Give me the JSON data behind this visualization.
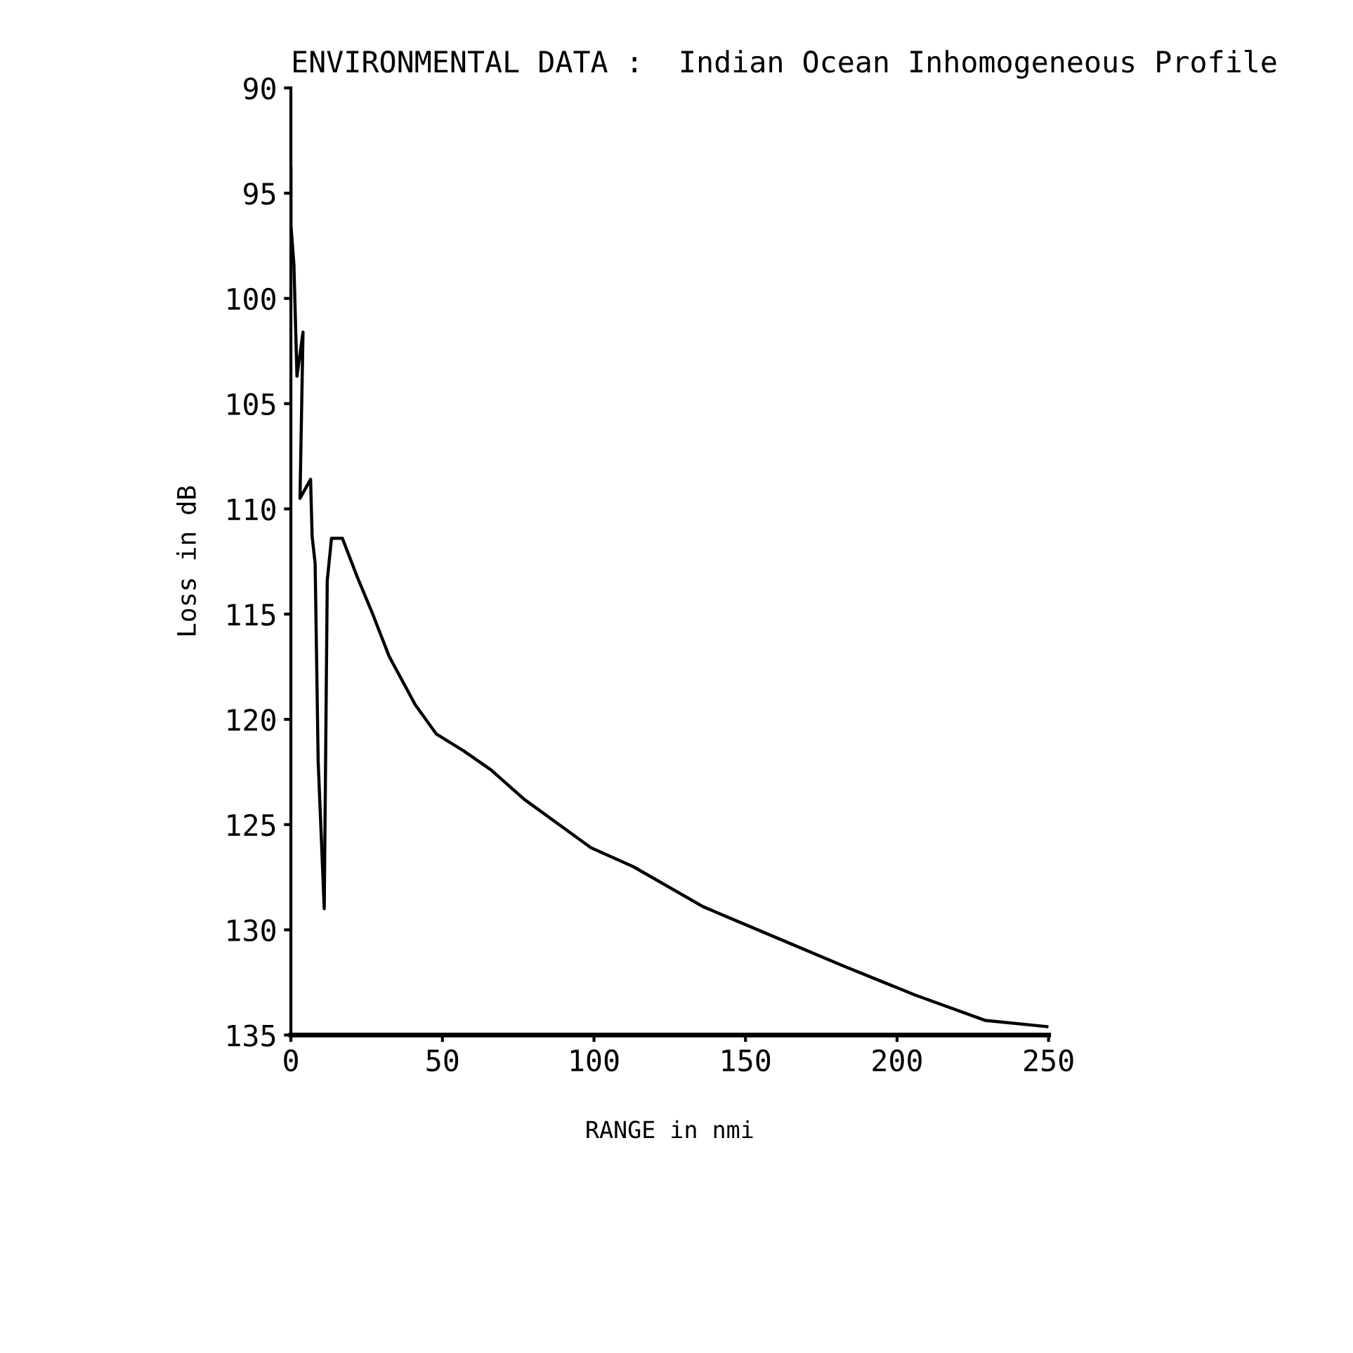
{
  "chart_data": {
    "type": "line",
    "title": "ENVIRONMENTAL DATA :  Indian Ocean Inhomogeneous Profile",
    "xlabel": "RANGE in nmi",
    "ylabel": "Loss in dB",
    "series": [
      {
        "color": "#000000",
        "x": [
          0,
          0,
          1,
          2,
          4,
          3,
          6.5,
          7,
          8,
          9,
          11,
          12,
          13.4,
          17,
          21.8,
          27,
          32.4,
          41,
          48,
          57,
          66,
          77,
          99,
          113,
          136,
          159,
          182,
          206,
          229,
          249.5
        ],
        "values": [
          93.8,
          96.5,
          98.4,
          103.7,
          101.6,
          109.5,
          108.6,
          111.3,
          112.6,
          122,
          129,
          113.4,
          111.4,
          111.4,
          113.2,
          115,
          117,
          119.3,
          120.7,
          121.5,
          122.4,
          123.8,
          126.1,
          127,
          128.9,
          130.3,
          131.7,
          133.1,
          134.3,
          134.6
        ]
      }
    ],
    "xlim": [
      0,
      250
    ],
    "xticks": [
      0,
      50,
      100,
      150,
      200,
      250
    ],
    "ylim": [
      135,
      90
    ],
    "yticks": [
      90,
      95,
      100,
      105,
      110,
      115,
      120,
      125,
      130,
      135
    ],
    "grid": false,
    "legend": false,
    "marker": "none",
    "line_style": "solid"
  }
}
